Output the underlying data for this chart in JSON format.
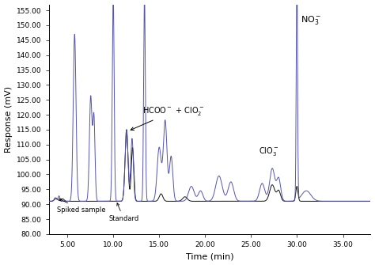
{
  "title": "",
  "xlabel": "Time (min)",
  "ylabel": "Response (mV)",
  "xlim": [
    3.0,
    38.0
  ],
  "ylim": [
    80.0,
    157.0
  ],
  "yticks": [
    80.0,
    85.0,
    90.0,
    95.0,
    100.0,
    105.0,
    110.0,
    115.0,
    120.0,
    125.0,
    130.0,
    135.0,
    140.0,
    145.0,
    150.0,
    155.0
  ],
  "xticks": [
    5.0,
    10.0,
    15.0,
    20.0,
    25.0,
    30.0,
    35.0
  ],
  "baseline": 91.0,
  "blue_color": "#5555aa",
  "black_color": "#111111",
  "annotation_fontsize": 7,
  "label_fontsize": 8,
  "tick_fontsize": 6.5
}
